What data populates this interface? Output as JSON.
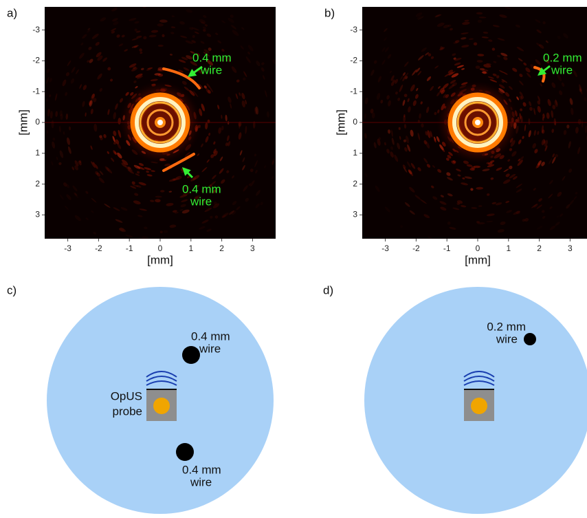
{
  "panels": [
    {
      "label": "a)",
      "x_label": "[mm]",
      "y_label": "[mm]",
      "xticks": [
        -3,
        -2,
        -1,
        0,
        1,
        2,
        3
      ],
      "yticks": [
        -3,
        -2,
        -1,
        0,
        1,
        2,
        3
      ],
      "annotations": [
        {
          "lines": [
            "0.4 mm",
            "wire"
          ]
        },
        {
          "lines": [
            "0.4 mm",
            "wire"
          ]
        }
      ]
    },
    {
      "label": "b)",
      "x_label": "[mm]",
      "y_label": "[mm]",
      "xticks": [
        -3,
        -2,
        -1,
        0,
        1,
        2,
        3
      ],
      "yticks": [
        -3,
        -2,
        -1,
        0,
        1,
        2,
        3
      ],
      "annotations": [
        {
          "lines": [
            "0.2 mm",
            "wire"
          ]
        }
      ]
    },
    {
      "label": "c)",
      "probe_label": [
        "OpUS",
        "probe"
      ],
      "annotations": [
        {
          "lines": [
            "0.4 mm",
            "wire"
          ]
        },
        {
          "lines": [
            "0.4 mm",
            "wire"
          ]
        }
      ]
    },
    {
      "label": "d)",
      "annotations": [
        {
          "lines": [
            "0.2 mm",
            "wire"
          ]
        }
      ]
    }
  ]
}
